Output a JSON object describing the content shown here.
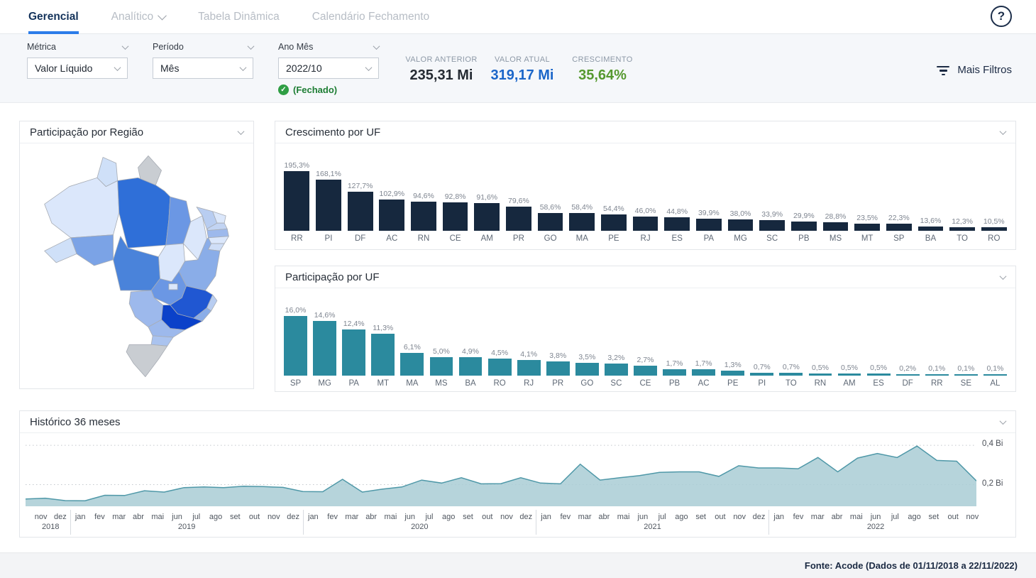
{
  "nav": {
    "tabs": [
      {
        "label": "Gerencial",
        "active": true
      },
      {
        "label": "Analítico",
        "active": false,
        "has_dropdown": true
      },
      {
        "label": "Tabela Dinâmica",
        "active": false
      },
      {
        "label": "Calendário Fechamento",
        "active": false
      }
    ]
  },
  "icons": {
    "question": "?",
    "check": "✓"
  },
  "filters": {
    "metrica": {
      "label": "Métrica",
      "value": "Valor Líquido"
    },
    "periodo": {
      "label": "Período",
      "value": "Mês"
    },
    "ano_mes": {
      "label": "Ano Mês",
      "value": "2022/10",
      "status": "(Fechado)"
    },
    "mais_filtros": "Mais Filtros"
  },
  "kpis": {
    "anterior": {
      "label": "VALOR ANTERIOR",
      "value": "235,31 Mi"
    },
    "atual": {
      "label": "VALOR ATUAL",
      "value": "319,17 Mi"
    },
    "crescimento": {
      "label": "CRESCIMENTO",
      "value": "35,64%"
    }
  },
  "cards": {
    "mapa": {
      "title": "Participação por Região"
    },
    "crescimento": {
      "title": "Crescimento por UF"
    },
    "participacao": {
      "title": "Participação por UF"
    },
    "historico": {
      "title": "Histórico 36 meses"
    }
  },
  "map": {
    "states": {
      "RR": "#cfe0f8",
      "AP": "#c9cdd2",
      "AM": "#dbe7fb",
      "PA": "#2f6fd8",
      "MA": "#6b97e4",
      "PI": "#dbe7fb",
      "CE": "#b8cdf1",
      "RN": "#dbe7fb",
      "PB": "#c2d4f3",
      "PE": "#9db9ec",
      "AL": "#dbe7fb",
      "SE": "#cfdef7",
      "BA": "#8aade8",
      "TO": "#dbe7fb",
      "MT": "#4a83da",
      "RO": "#7ba3e6",
      "AC": "#cfe0f8",
      "GO": "#6b97e4",
      "DF": "#dbe7fb",
      "MS": "#9db9ec",
      "MG": "#2057d2",
      "ES": "#b8cdf1",
      "RJ": "#8aade8",
      "SP": "#0b41c9",
      "PR": "#9db9ec",
      "SC": "#aac3ef",
      "RS": "#c9cdd2"
    }
  },
  "chart_data": [
    {
      "id": "crescimento_uf",
      "type": "bar",
      "title": "Crescimento por UF",
      "categories": [
        "RR",
        "PI",
        "DF",
        "AC",
        "RN",
        "CE",
        "AM",
        "PR",
        "GO",
        "MA",
        "PE",
        "RJ",
        "ES",
        "PA",
        "MG",
        "SC",
        "PB",
        "MS",
        "MT",
        "SP",
        "BA",
        "TO",
        "RO"
      ],
      "values": [
        195.3,
        168.1,
        127.7,
        102.9,
        94.6,
        92.8,
        91.6,
        79.6,
        58.6,
        58.4,
        54.4,
        46.0,
        44.8,
        39.9,
        38.0,
        33.9,
        29.9,
        28.8,
        23.5,
        22.3,
        13.6,
        12.3,
        10.5
      ],
      "labels": [
        "195,3%",
        "168,1%",
        "127,7%",
        "102,9%",
        "94,6%",
        "92,8%",
        "91,6%",
        "79,6%",
        "58,6%",
        "58,4%",
        "54,4%",
        "46,0%",
        "44,8%",
        "39,9%",
        "38,0%",
        "33,9%",
        "29,9%",
        "28,8%",
        "23,5%",
        "22,3%",
        "13,6%",
        "12,3%",
        "10,5%"
      ],
      "bar_color": "#16283e",
      "xlabel": "UF",
      "ylabel": "Crescimento %",
      "ylim": [
        0,
        200
      ],
      "grid": false,
      "legend": "none"
    },
    {
      "id": "participacao_uf",
      "type": "bar",
      "title": "Participação por UF",
      "categories": [
        "SP",
        "MG",
        "PA",
        "MT",
        "MA",
        "MS",
        "BA",
        "RO",
        "RJ",
        "PR",
        "GO",
        "SC",
        "CE",
        "PB",
        "AC",
        "PE",
        "PI",
        "TO",
        "RN",
        "AM",
        "ES",
        "DF",
        "RR",
        "SE",
        "AL"
      ],
      "values": [
        16.0,
        14.6,
        12.4,
        11.3,
        6.1,
        5.0,
        4.9,
        4.5,
        4.1,
        3.8,
        3.5,
        3.2,
        2.7,
        1.7,
        1.7,
        1.3,
        0.7,
        0.7,
        0.5,
        0.5,
        0.5,
        0.2,
        0.1,
        0.1,
        0.1
      ],
      "labels": [
        "16,0%",
        "14,6%",
        "12,4%",
        "11,3%",
        "6,1%",
        "5,0%",
        "4,9%",
        "4,5%",
        "4,1%",
        "3,8%",
        "3,5%",
        "3,2%",
        "2,7%",
        "1,7%",
        "1,7%",
        "1,3%",
        "0,7%",
        "0,7%",
        "0,5%",
        "0,5%",
        "0,5%",
        "0,2%",
        "0,1%",
        "0,1%",
        "0,1%"
      ],
      "bar_color": "#2b8a9e",
      "xlabel": "UF",
      "ylabel": "Participação %",
      "ylim": [
        0,
        16
      ],
      "grid": false,
      "legend": "none"
    },
    {
      "id": "historico_36_meses",
      "type": "area",
      "title": "Histórico 36 meses",
      "unit": "Bi",
      "year_groups": [
        {
          "year": "2018",
          "months": [
            "nov",
            "dez"
          ]
        },
        {
          "year": "2019",
          "months": [
            "jan",
            "fev",
            "mar",
            "abr",
            "mai",
            "jun",
            "jul",
            "ago",
            "set",
            "out",
            "nov",
            "dez"
          ]
        },
        {
          "year": "2020",
          "months": [
            "jan",
            "fev",
            "mar",
            "abr",
            "mai",
            "jun",
            "jul",
            "ago",
            "set",
            "out",
            "nov",
            "dez"
          ]
        },
        {
          "year": "2021",
          "months": [
            "jan",
            "fev",
            "mar",
            "abr",
            "mai",
            "jun",
            "jul",
            "ago",
            "set",
            "out",
            "nov",
            "dez"
          ]
        },
        {
          "year": "2022",
          "months": [
            "jan",
            "fev",
            "mar",
            "abr",
            "mai",
            "jun",
            "jul",
            "ago",
            "set",
            "out",
            "nov"
          ]
        }
      ],
      "values": [
        0.127,
        0.131,
        0.119,
        0.118,
        0.146,
        0.145,
        0.169,
        0.162,
        0.185,
        0.188,
        0.185,
        0.192,
        0.19,
        0.186,
        0.165,
        0.164,
        0.227,
        0.162,
        0.177,
        0.188,
        0.223,
        0.208,
        0.235,
        0.204,
        0.205,
        0.235,
        0.208,
        0.204,
        0.304,
        0.223,
        0.235,
        0.246,
        0.262,
        0.265,
        0.265,
        0.242,
        0.296,
        0.285,
        0.285,
        0.281,
        0.338,
        0.265,
        0.335,
        0.358,
        0.338,
        0.396,
        0.323,
        0.319,
        0.219
      ],
      "gridlines": [
        {
          "value": 0.4,
          "label": "0,4 Bi"
        },
        {
          "value": 0.2,
          "label": "0,2 Bi"
        }
      ],
      "ylim": [
        0.09,
        0.44
      ],
      "fill": "#a9ccd5",
      "stroke": "#4f98a8",
      "grid": "dotted-horizontal",
      "legend": "none",
      "y_axis_position": "right"
    }
  ],
  "footer": {
    "fonte": "Fonte: Acode (Dados de 01/11/2018 a 22/11/2022)"
  }
}
